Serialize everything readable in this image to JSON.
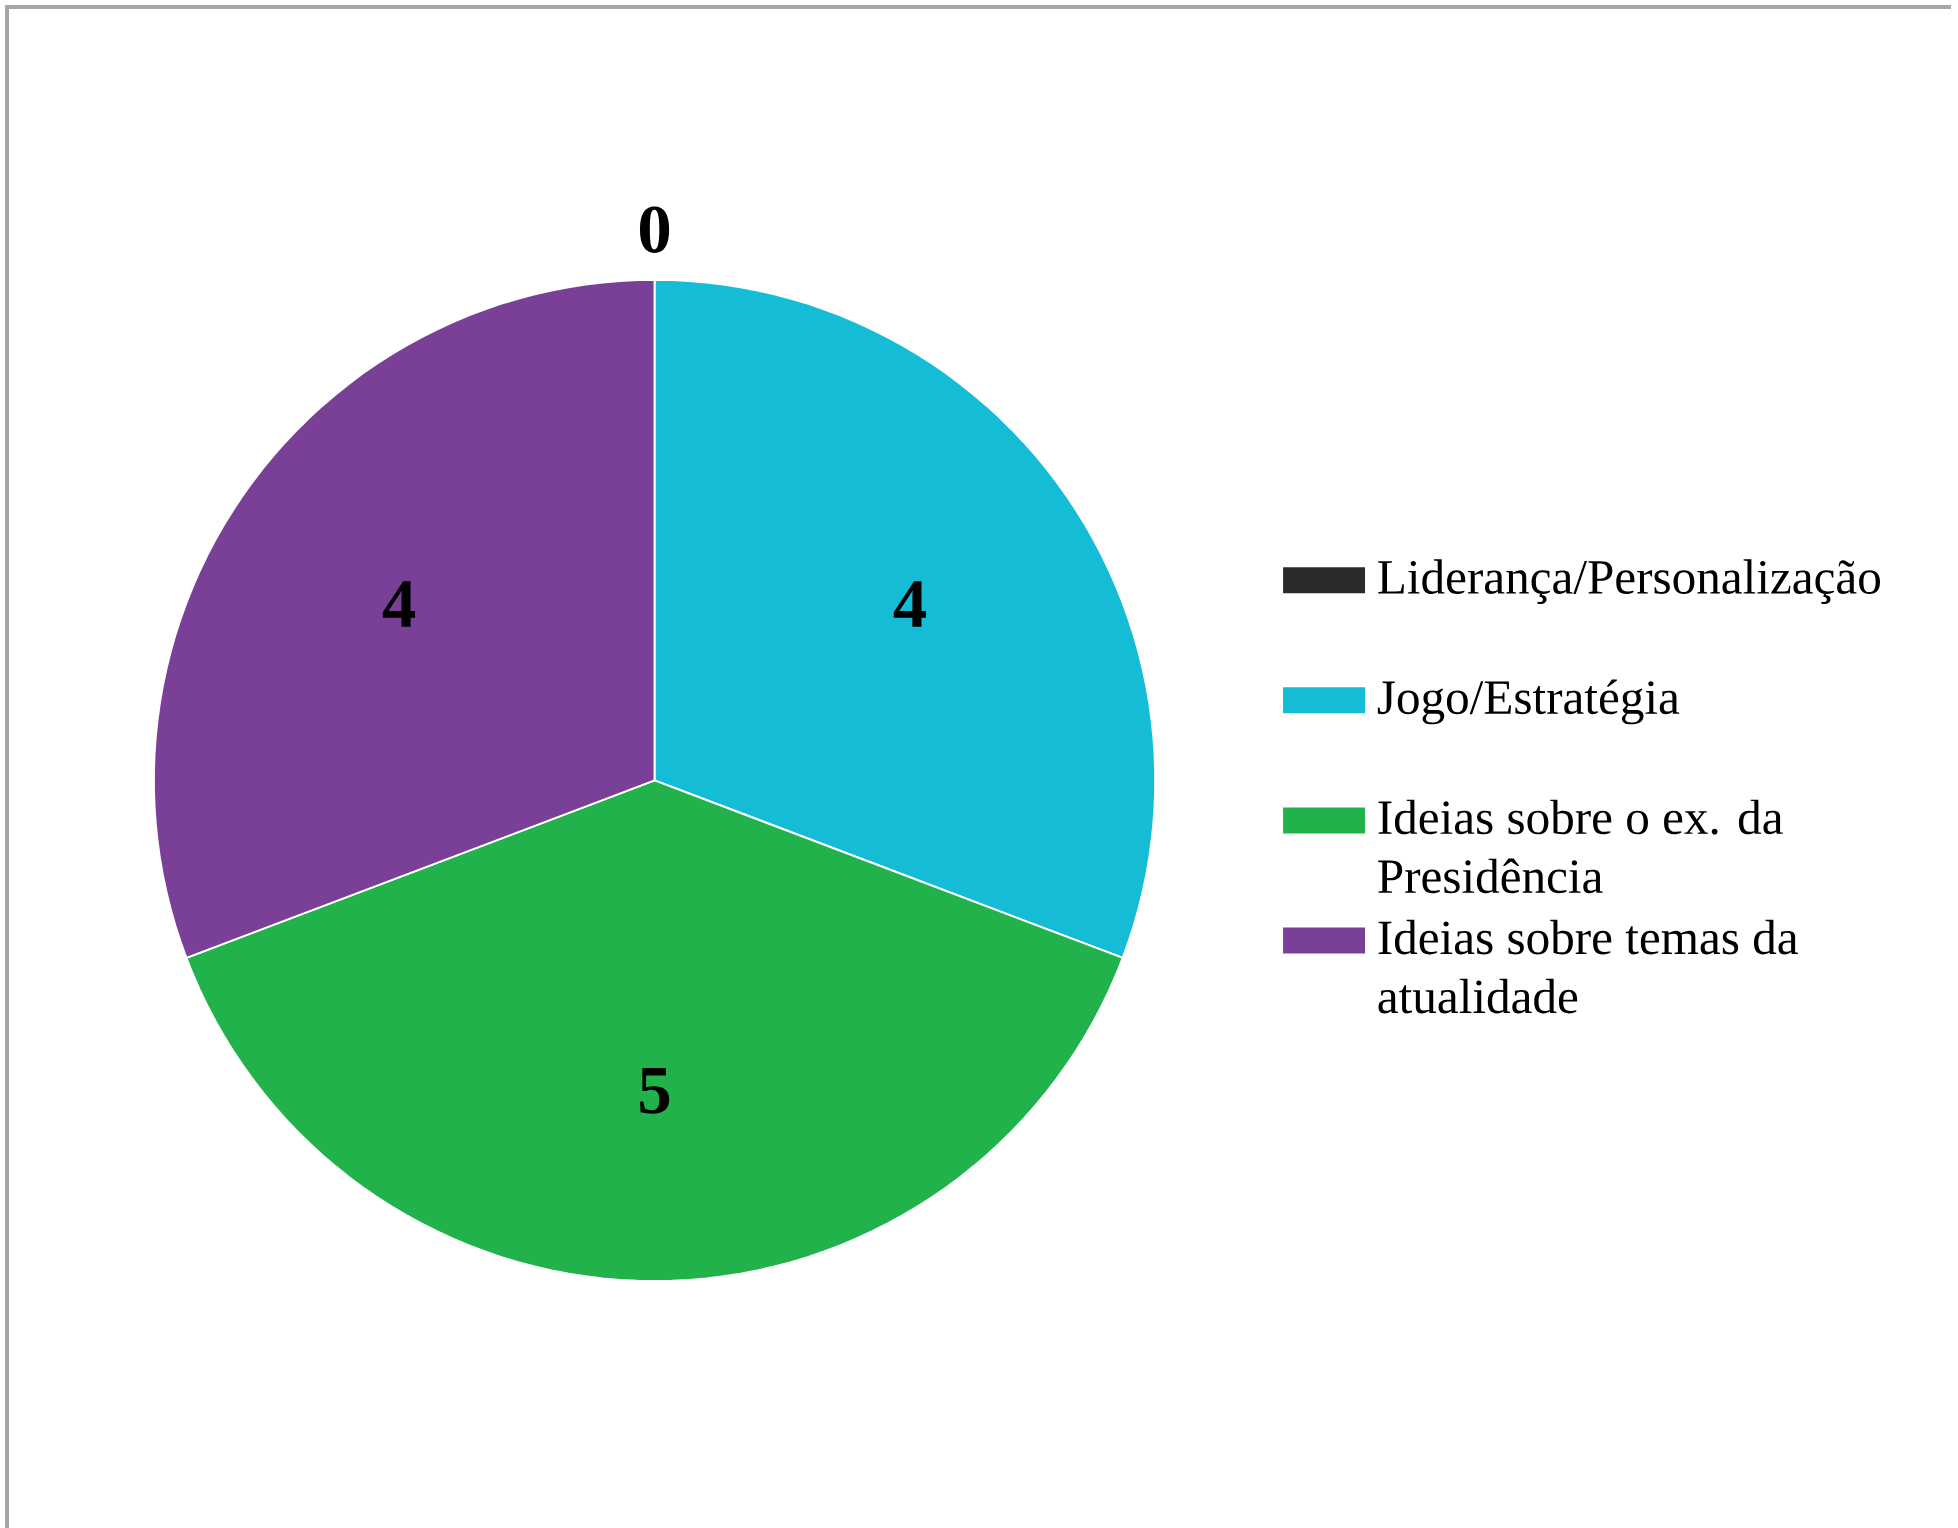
{
  "chart_data": {
    "type": "pie",
    "categories": [
      "Liderança/Personalização",
      "Jogo/Estratégia",
      "Ideias sobre o ex. da Presidência",
      "Ideias sobre temas da atualidade"
    ],
    "values": [
      0,
      4,
      5,
      4
    ],
    "colors": [
      "#2b2b2b",
      "#14bcd6",
      "#22b24c",
      "#7a3f96"
    ],
    "value_labels": [
      "0",
      "4",
      "5",
      "4"
    ],
    "legend": "right"
  }
}
